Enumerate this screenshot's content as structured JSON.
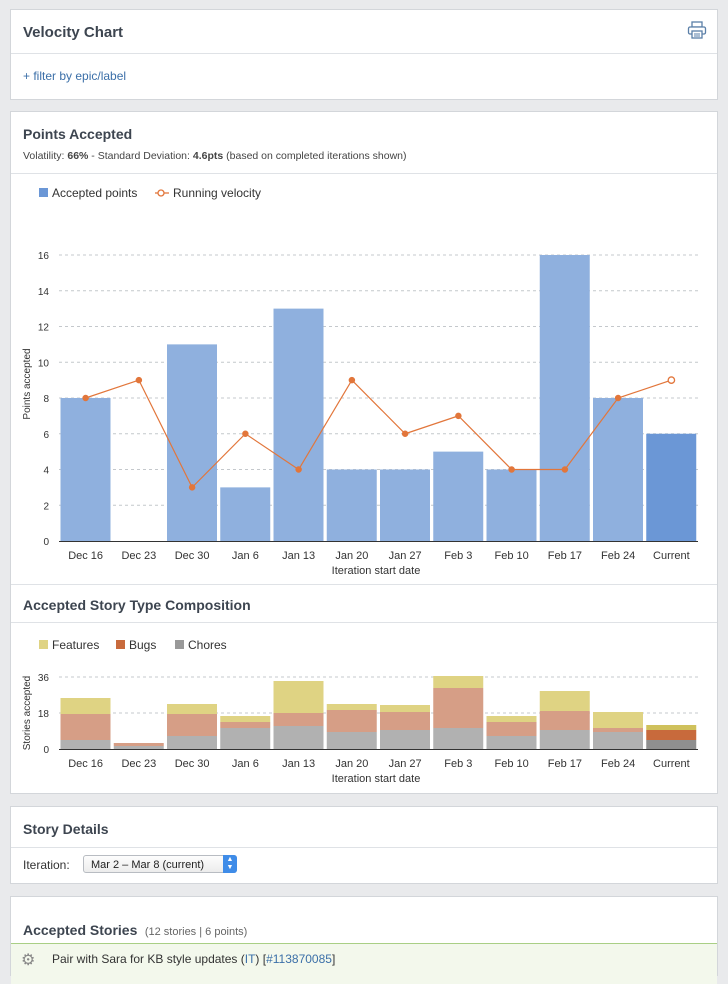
{
  "header": {
    "title": "Velocity Chart",
    "filter_link": "+ filter by epic/label",
    "print_icon": "printer-icon"
  },
  "points_panel": {
    "title": "Points Accepted",
    "volatility_label": "Volatility:",
    "volatility_value": "66%",
    "sd_label": "- Standard Deviation:",
    "sd_value": "4.6pts",
    "note": "(based on completed iterations shown)"
  },
  "chart_data": [
    {
      "type": "bar",
      "ylabel": "Points accepted",
      "xlabel": "Iteration start date",
      "ylim": [
        0,
        16
      ],
      "yticks": [
        "0",
        "2",
        "4",
        "6",
        "8",
        "10",
        "12",
        "14",
        "16"
      ],
      "categories": [
        "Dec 16",
        "Dec 23",
        "Dec 30",
        "Jan 6",
        "Jan 13",
        "Jan 20",
        "Jan 27",
        "Feb 3",
        "Feb 10",
        "Feb 17",
        "Feb 24",
        "Current"
      ],
      "legend": [
        "Accepted points",
        "Running velocity"
      ],
      "series": [
        {
          "name": "Accepted points",
          "type": "bar",
          "values": [
            8,
            0,
            11,
            3,
            13,
            4,
            4,
            5,
            4,
            16,
            8,
            6
          ]
        },
        {
          "name": "Running velocity",
          "type": "line",
          "values": [
            8,
            9,
            3,
            6,
            4,
            9,
            6,
            7,
            4,
            4,
            8,
            9
          ]
        }
      ],
      "grid": true,
      "colors": {
        "bar": "#8fb0de",
        "bar_current": "#6b97d6",
        "line": "#e2763b"
      }
    },
    {
      "type": "bar",
      "title": "Accepted Story Type Composition",
      "ylabel": "Stories accepted",
      "xlabel": "Iteration start date",
      "ylim": [
        0,
        36
      ],
      "yticks": [
        "0",
        "18",
        "36"
      ],
      "stacked": true,
      "categories": [
        "Dec 16",
        "Dec 23",
        "Dec 30",
        "Jan 6",
        "Jan 13",
        "Jan 20",
        "Jan 27",
        "Feb 3",
        "Feb 10",
        "Feb 17",
        "Feb 24",
        "Current"
      ],
      "legend": [
        "Features",
        "Bugs",
        "Chores"
      ],
      "series": [
        {
          "name": "Chores",
          "values": [
            4.5,
            1.5,
            6.5,
            10.5,
            11.5,
            8.5,
            9.5,
            10.5,
            6.5,
            9.5,
            8.5,
            4.5
          ]
        },
        {
          "name": "Bugs",
          "values": [
            13,
            1.5,
            11,
            3,
            6.5,
            11,
            9,
            20,
            7,
            9.5,
            2,
            5
          ]
        },
        {
          "name": "Features",
          "values": [
            8,
            0,
            5,
            3,
            16,
            3,
            3.5,
            6,
            3,
            10,
            8,
            2.5
          ]
        }
      ],
      "grid": true,
      "colors": {
        "Features": "#dfd383",
        "Bugs": "#d69e86",
        "Chores": "#b1b1b1",
        "Features_current": "#cfc15c",
        "Bugs_current": "#c86a3c",
        "Chores_current": "#8f8f8f"
      }
    }
  ],
  "story_details": {
    "title": "Story Details",
    "iteration_label": "Iteration:",
    "iteration_value": "Mar 2 – Mar 8 (current)"
  },
  "accepted": {
    "title": "Accepted Stories",
    "summary": "(12 stories | 6 points)",
    "first_row_text": "Pair with Sara for KB style updates (",
    "first_row_initials": "IT",
    "first_row_sep": ") [",
    "first_row_id": "#113870085",
    "first_row_end": "]"
  }
}
